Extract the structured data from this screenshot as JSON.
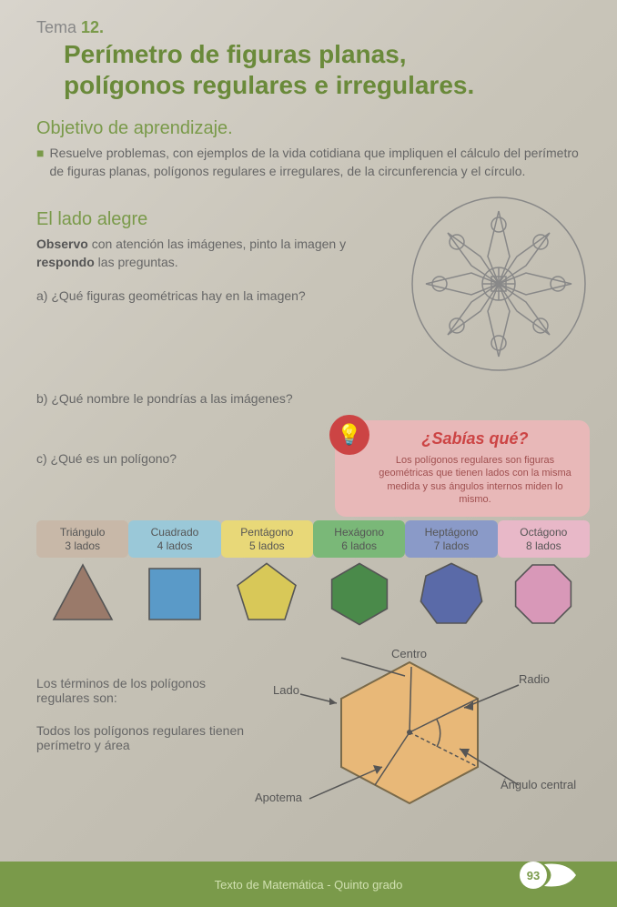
{
  "tema": {
    "label": "Tema",
    "num": "12."
  },
  "title_l1": "Perímetro de figuras planas,",
  "title_l2": "polígonos regulares e irregulares.",
  "objetivo": {
    "heading": "Objetivo de aprendizaje.",
    "text": "Resuelve problemas, con ejemplos de la vida cotidiana que impliquen el cálculo del perímetro de figuras planas, polígonos regulares e irregulares, de la circunferencia y el círculo."
  },
  "lado": {
    "heading": "El lado alegre",
    "intro_a": "Observo",
    "intro_b": " con atención las imágenes, pinto la imagen y ",
    "intro_c": "respondo",
    "intro_d": " las preguntas."
  },
  "qa": "a) ¿Qué figuras geométricas hay en la imagen?",
  "qb": "b) ¿Qué nombre le pondrías a las imágenes?",
  "qc": "c) ¿Qué es un polígono?",
  "sabias": {
    "title": "¿Sabías qué?",
    "text": "Los polígonos regulares son figuras geométricas que tienen lados con la misma medida y sus ángulos internos miden lo mismo."
  },
  "polys": [
    {
      "name": "Triángulo",
      "sides": "3 lados",
      "bg": "#c8b8a8",
      "fill": "#9a7a6a"
    },
    {
      "name": "Cuadrado",
      "sides": "4 lados",
      "bg": "#9ac8d8",
      "fill": "#5a9ac8"
    },
    {
      "name": "Pentágono",
      "sides": "5 lados",
      "bg": "#e8d878",
      "fill": "#d8c858"
    },
    {
      "name": "Hexágono",
      "sides": "6 lados",
      "bg": "#7ab878",
      "fill": "#4a8a4a"
    },
    {
      "name": "Heptágono",
      "sides": "7 lados",
      "bg": "#8a9ac8",
      "fill": "#5a6aa8"
    },
    {
      "name": "Octágono",
      "sides": "8 lados",
      "bg": "#e8b8c8",
      "fill": "#d898b8"
    }
  ],
  "hex": {
    "intro": "Los términos de los polígonos regulares son:",
    "note": "Todos los polígonos regulares tienen perímetro y área",
    "lado": "Lado",
    "centro": "Centro",
    "radio": "Radio",
    "apotema": "Apotema",
    "angulo": "Ángulo central",
    "fill": "#e8b878",
    "stroke": "#7a6a4a"
  },
  "footer": {
    "text": "Texto de Matemática - Quinto grado",
    "page": "93"
  },
  "mandala": {
    "stroke": "#888888"
  }
}
